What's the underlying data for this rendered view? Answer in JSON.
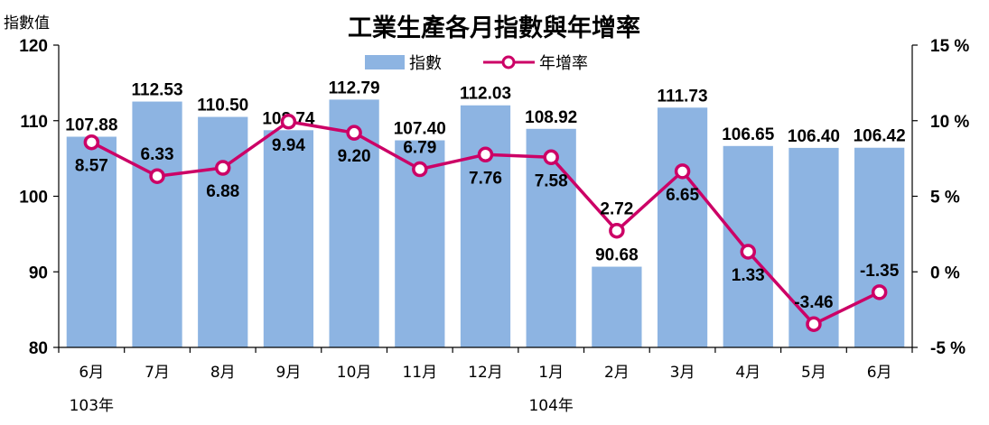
{
  "chart_data": {
    "type": "bar",
    "title": "工業生產各月指數與年增率",
    "ylabel": "指數值",
    "ylim": [
      80,
      120
    ],
    "y2lim": [
      -5,
      15
    ],
    "yticks": [
      "80",
      "90",
      "100",
      "110",
      "120"
    ],
    "y2ticks": [
      "-5 %",
      "0 %",
      "5 %",
      "10 %",
      "15 %"
    ],
    "categories": [
      "6月",
      "7月",
      "8月",
      "9月",
      "10月",
      "11月",
      "12月",
      "1月",
      "2月",
      "3月",
      "4月",
      "5月",
      "6月"
    ],
    "year_labels": [
      {
        "text": "103年",
        "index": 0
      },
      {
        "text": "104年",
        "index": 7
      }
    ],
    "series": [
      {
        "name": "指數",
        "type": "bar",
        "axis": "left",
        "color": "#8db4e2",
        "values": [
          107.88,
          112.53,
          110.5,
          108.74,
          112.79,
          107.4,
          112.03,
          108.92,
          90.68,
          111.73,
          106.65,
          106.4,
          106.42
        ],
        "labels": [
          "107.88",
          "112.53",
          "110.50",
          "108.74",
          "112.79",
          "107.40",
          "112.03",
          "108.92",
          "90.68",
          "111.73",
          "106.65",
          "106.40",
          "106.42"
        ]
      },
      {
        "name": "年增率",
        "type": "line",
        "axis": "right",
        "color": "#cc0066",
        "values": [
          8.57,
          6.33,
          6.88,
          9.94,
          9.2,
          6.79,
          7.76,
          7.58,
          2.72,
          6.65,
          1.33,
          -3.46,
          -1.35
        ],
        "labels": [
          "8.57",
          "6.33",
          "6.88",
          "9.94",
          "9.20",
          "6.79",
          "7.76",
          "7.58",
          "2.72",
          "6.65",
          "1.33",
          "-3.46",
          "-1.35"
        ]
      }
    ],
    "legend": "top-center",
    "grid": false
  }
}
